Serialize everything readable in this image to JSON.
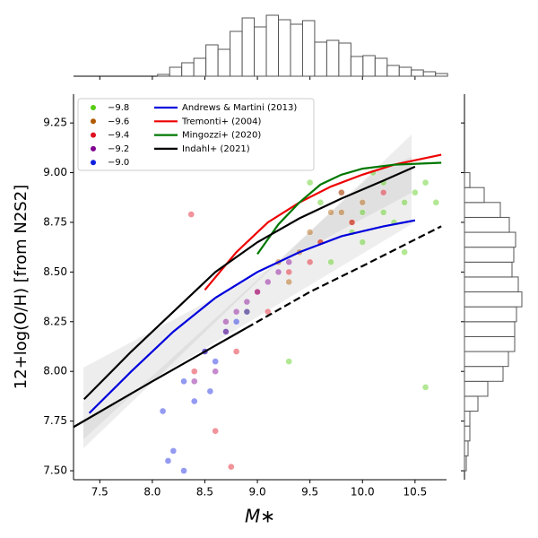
{
  "chart_data": {
    "type": "scatter",
    "xlabel": "M∗",
    "ylabel": "12+log(O/H) [from N2S2]",
    "xlim": [
      7.25,
      10.8
    ],
    "ylim": [
      7.455,
      9.395
    ],
    "xticks": [
      7.5,
      {
        "value": 8,
        "label": "8.0"
      },
      8.5,
      {
        "value": 9,
        "label": "9.0"
      },
      9.5,
      {
        "value": 10,
        "label": "10.0"
      },
      10.5
    ],
    "yticks": [
      {
        "value": 7.5,
        "label": "7.50"
      },
      7.75,
      {
        "value": 8,
        "label": "8.00"
      },
      8.25,
      {
        "value": 8.5,
        "label": "8.50"
      },
      8.75,
      {
        "value": 9,
        "label": "9.00"
      },
      9.25
    ],
    "series": [
      {
        "name": "−9.8",
        "color": "#55cc11",
        "x": [
          9.6,
          9.8,
          10.0,
          10.2,
          10.4,
          10.6,
          9.9,
          10.1,
          10.3,
          10.5,
          9.7,
          10.7,
          9.5,
          10.4,
          10.0,
          10.2,
          9.3,
          10.6
        ],
        "values": [
          8.85,
          8.9,
          8.8,
          8.95,
          8.85,
          8.95,
          8.7,
          9.0,
          8.75,
          8.9,
          8.55,
          8.85,
          8.95,
          8.6,
          8.65,
          8.8,
          8.05,
          7.92
        ]
      },
      {
        "name": "−9.6",
        "color": "#b05a00",
        "x": [
          9.2,
          9.5,
          9.8,
          10.0,
          9.3,
          9.6,
          9.9,
          8.9,
          9.4,
          9.7
        ],
        "values": [
          8.55,
          8.7,
          8.8,
          8.85,
          8.45,
          8.65,
          8.75,
          8.3,
          8.6,
          8.8
        ]
      },
      {
        "name": "−9.4",
        "color": "#e01020",
        "x": [
          8.4,
          8.7,
          9.0,
          9.3,
          9.6,
          9.9,
          10.2,
          8.8,
          9.1,
          9.5,
          8.6,
          9.8,
          8.37,
          8.75
        ],
        "values": [
          8.0,
          8.2,
          8.4,
          8.5,
          8.65,
          8.75,
          8.9,
          8.1,
          8.3,
          8.55,
          7.7,
          8.9,
          8.79,
          7.52
        ]
      },
      {
        "name": "−9.2",
        "color": "#800090",
        "x": [
          8.5,
          8.7,
          8.9,
          9.1,
          9.3,
          8.6,
          8.8,
          9.0,
          9.2,
          8.4
        ],
        "values": [
          8.1,
          8.25,
          8.35,
          8.45,
          8.55,
          8.0,
          8.3,
          8.4,
          8.5,
          7.95
        ]
      },
      {
        "name": "−9.0",
        "color": "#1020e0",
        "x": [
          8.1,
          8.3,
          8.5,
          8.7,
          8.9,
          8.2,
          8.4,
          8.6,
          8.8,
          8.15,
          8.3,
          8.55
        ],
        "values": [
          7.8,
          7.95,
          8.1,
          8.2,
          8.3,
          7.6,
          7.85,
          8.05,
          8.25,
          7.55,
          7.5,
          7.9
        ]
      }
    ],
    "lines": [
      {
        "name": "Andrews & Martini (2013)",
        "color": "#0000dd",
        "dashed": false,
        "x": [
          7.4,
          7.8,
          8.2,
          8.6,
          9.0,
          9.4,
          9.8,
          10.2,
          10.5
        ],
        "values": [
          7.79,
          8.0,
          8.2,
          8.37,
          8.5,
          8.6,
          8.68,
          8.73,
          8.76
        ]
      },
      {
        "name": "Tremonti+ (2004)",
        "color": "#ee0000",
        "dashed": false,
        "x": [
          8.5,
          8.8,
          9.1,
          9.4,
          9.7,
          10.0,
          10.3,
          10.75
        ],
        "values": [
          8.41,
          8.6,
          8.75,
          8.85,
          8.93,
          8.99,
          9.04,
          9.09
        ]
      },
      {
        "name": "Mingozzi+ (2020)",
        "color": "#007700",
        "dashed": false,
        "x": [
          9.0,
          9.2,
          9.4,
          9.6,
          9.8,
          10.0,
          10.3,
          10.75
        ],
        "values": [
          8.59,
          8.74,
          8.85,
          8.94,
          8.99,
          9.02,
          9.04,
          9.05
        ]
      },
      {
        "name": "Indahl+ (2021)",
        "color": "#000000",
        "dashed": false,
        "x": [
          7.35,
          7.8,
          8.2,
          8.6,
          9.0,
          9.4,
          9.8,
          10.2,
          10.5
        ],
        "values": [
          7.86,
          8.1,
          8.3,
          8.5,
          8.65,
          8.77,
          8.87,
          8.96,
          9.03
        ]
      },
      {
        "color": "#000000",
        "dashed": false,
        "x": [
          7.25,
          8.0,
          8.5,
          8.9
        ],
        "values": [
          7.72,
          7.95,
          8.1,
          8.22
        ]
      },
      {
        "color": "#000000",
        "dashed": true,
        "x": [
          8.9,
          9.5,
          10.0,
          10.75
        ],
        "values": [
          8.22,
          8.4,
          8.53,
          8.73
        ]
      }
    ],
    "histograms": {
      "top": {
        "bins": [
          8.05,
          8.165,
          8.28,
          8.395,
          8.51,
          8.625,
          8.74,
          8.855,
          8.97,
          9.085,
          9.2,
          9.315,
          9.43,
          9.545,
          9.66,
          9.775,
          9.89,
          10.005,
          10.12,
          10.235,
          10.35,
          10.465,
          10.58,
          10.695,
          10.81
        ],
        "counts": [
          2,
          10,
          15,
          20,
          35,
          30,
          50,
          65,
          55,
          68,
          63,
          58,
          62,
          38,
          40,
          37,
          22,
          23,
          20,
          12,
          10,
          7,
          5,
          3
        ],
        "lim": [
          0,
          70
        ]
      },
      "right": {
        "bins": [
          7.5,
          7.575,
          7.65,
          7.725,
          7.8,
          7.875,
          7.95,
          8.025,
          8.1,
          8.175,
          8.25,
          8.325,
          8.4,
          8.475,
          8.55,
          8.625,
          8.7,
          8.775,
          8.85,
          8.925,
          9.0
        ],
        "counts": [
          2,
          4,
          6,
          6,
          15,
          26,
          43,
          49,
          56,
          56,
          58,
          64,
          60,
          53,
          55,
          57,
          50,
          40,
          22,
          6
        ],
        "lim": [
          0,
          72
        ]
      }
    }
  }
}
